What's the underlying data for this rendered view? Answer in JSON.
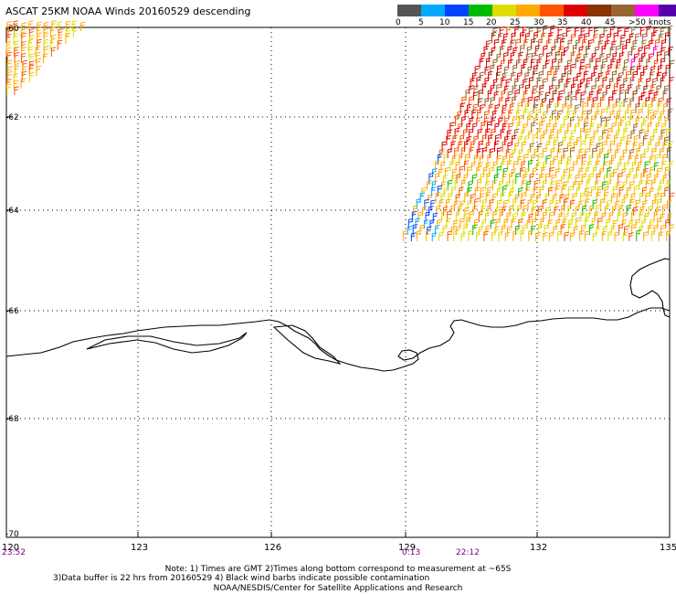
{
  "title": "ASCAT 25KM NOAA Winds 20160529 descending",
  "legend": {
    "colors": [
      "#555555",
      "#00aaff",
      "#0044ff",
      "#00bb00",
      "#dddd00",
      "#ffaa00",
      "#ff5500",
      "#dd0000",
      "#883300",
      "#996633",
      "#ff00ff",
      "#5500aa"
    ],
    "labels": [
      "0",
      "5",
      "10",
      "15",
      "20",
      "25",
      "30",
      "35",
      "40",
      "45",
      ">50 knots"
    ]
  },
  "axes": {
    "lat_labels": [
      "-60",
      "-62",
      "-64",
      "-66",
      "-68",
      "-70"
    ],
    "lon_labels": [
      "120",
      "123",
      "126",
      "129",
      "132",
      "135"
    ]
  },
  "time_labels": [
    "23:52",
    "0:13",
    "22:12"
  ],
  "notes": {
    "line1": "Note: 1) Times are GMT 2)Times along bottom correspond to measurement at ~65S",
    "line2": "3)Data buffer is 22 hrs from 20160529 4) Black wind barbs indicate possible contamination",
    "line3": "NOAA/NESDIS/Center for Satellite Applications and Research"
  }
}
